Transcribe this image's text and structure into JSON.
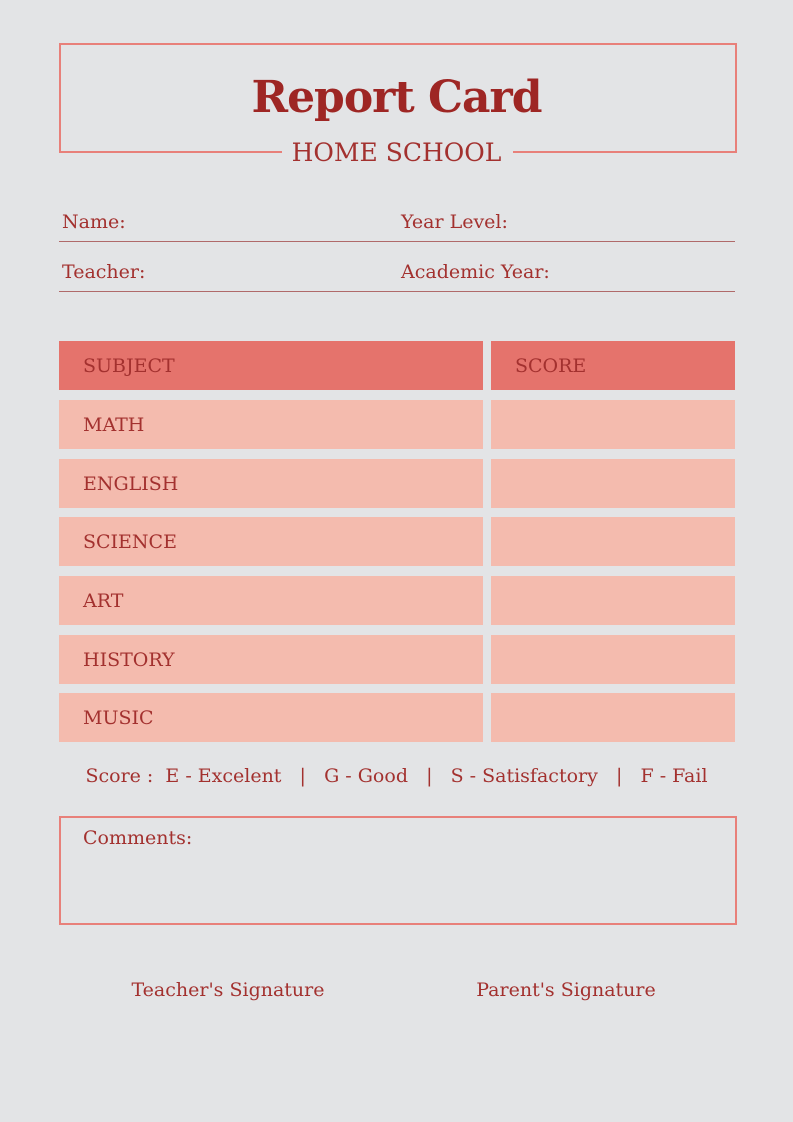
{
  "header": {
    "title": "Report Card",
    "subtitle": "HOME SCHOOL"
  },
  "fields": {
    "name": "Name:",
    "year_level": "Year Level:",
    "teacher": "Teacher:",
    "academic_year": "Academic Year:"
  },
  "table": {
    "headers": [
      "SUBJECT",
      "SCORE"
    ],
    "rows": [
      {
        "subject": "MATH",
        "score": ""
      },
      {
        "subject": "ENGLISH",
        "score": ""
      },
      {
        "subject": "SCIENCE",
        "score": ""
      },
      {
        "subject": "ART",
        "score": ""
      },
      {
        "subject": "HISTORY",
        "score": ""
      },
      {
        "subject": "MUSIC",
        "score": ""
      }
    ]
  },
  "legend": "Score :  E - Excelent   |   G - Good   |   S - Satisfactory   |   F - Fail",
  "comments": {
    "label": "Comments:",
    "value": ""
  },
  "signatures": {
    "teacher": "Teacher's Signature",
    "parent": "Parent's Signature"
  },
  "colors": {
    "accent": "#e5736c",
    "row": "#f4bbae",
    "text": "#a3312f",
    "border": "#e8807a",
    "background": "#e3e4e6"
  }
}
